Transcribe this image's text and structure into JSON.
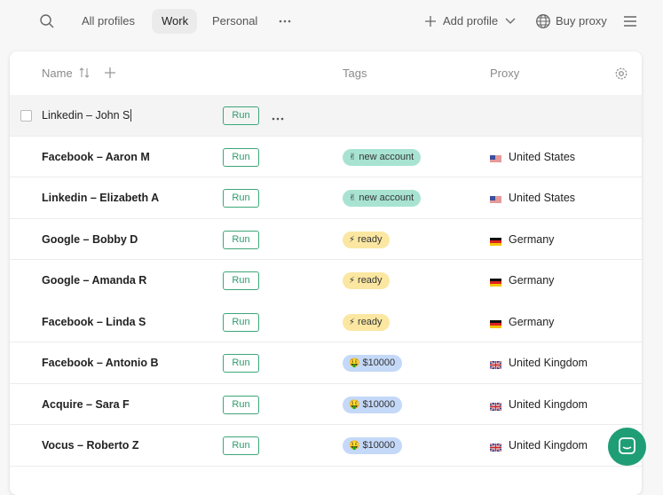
{
  "nav": {
    "tabs": [
      "All profiles",
      "Work",
      "Personal"
    ],
    "add_profile": "Add profile",
    "buy_proxy": "Buy proxy"
  },
  "table": {
    "columns": {
      "name": "Name",
      "tags": "Tags",
      "proxy": "Proxy"
    },
    "run_label": "Run",
    "rows": [
      {
        "name": "Linkedin – John S"
      },
      {
        "name": "Facebook – Aaron M",
        "tag": {
          "icon": "✌",
          "text": "new account"
        },
        "proxy": "United States"
      },
      {
        "name": "Linkedin – Elizabeth A",
        "tag": {
          "icon": "✌",
          "text": "new account"
        },
        "proxy": "United States"
      },
      {
        "name": "Google – Bobby D",
        "tag": {
          "icon": "⚡",
          "text": "ready"
        },
        "proxy": "Germany"
      },
      {
        "name": "Google – Amanda R",
        "tag": {
          "icon": "⚡",
          "text": "ready"
        },
        "proxy": "Germany"
      },
      {
        "name": "Facebook – Linda S",
        "tag": {
          "icon": "⚡",
          "text": "ready"
        },
        "proxy": "Germany"
      },
      {
        "name": "Facebook – Antonio B",
        "tag": {
          "icon": "🤑",
          "text": "$10000"
        },
        "proxy": "United Kingdom"
      },
      {
        "name": "Acquire – Sara F",
        "tag": {
          "icon": "🤑",
          "text": "$10000"
        },
        "proxy": "United Kingdom"
      },
      {
        "name": "Vocus – Roberto Z",
        "tag": {
          "icon": "🤑",
          "text": "$10000"
        },
        "proxy": "United Kingdom"
      }
    ]
  }
}
